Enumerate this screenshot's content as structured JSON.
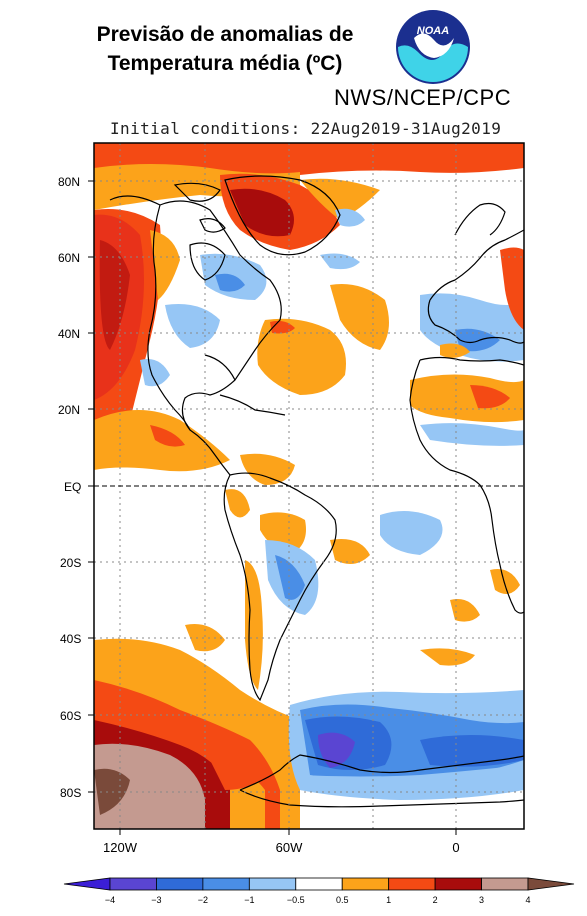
{
  "title_line1": "Previsão de anomalias de",
  "title_line2": "Temperatura média (ºC)",
  "organization": "NWS/NCEP/CPC",
  "initial_conditions": "Initial conditions: 22Aug2019-31Aug2019",
  "logo_text": "NOAA",
  "lat_labels": [
    "80N",
    "60N",
    "40N",
    "20N",
    "EQ",
    "20S",
    "40S",
    "60S",
    "80S"
  ],
  "lon_labels": [
    "120W",
    "60W",
    "0"
  ],
  "colorbar": {
    "ticks": [
      "−4",
      "−3",
      "−2",
      "−1",
      "−0.5",
      "0.5",
      "1",
      "2",
      "3",
      "4"
    ],
    "colors": [
      "#3b1fd6",
      "#5a45d2",
      "#2f6bd8",
      "#4a8ee6",
      "#96c6f5",
      "#ffffff",
      "#fca31a",
      "#f44a14",
      "#a80c0c",
      "#c49a90",
      "#7a4a3a"
    ]
  },
  "anomaly_colors": {
    "warm_weak": "#fca31a",
    "warm_mod": "#f44a14",
    "warm_strong": "#a80c0c",
    "warm_extreme": "#c49a90",
    "cold_weak": "#96c6f5",
    "cold_mod": "#4a8ee6",
    "cold_strong": "#2f6bd8",
    "cold_extreme": "#5a45d2"
  }
}
